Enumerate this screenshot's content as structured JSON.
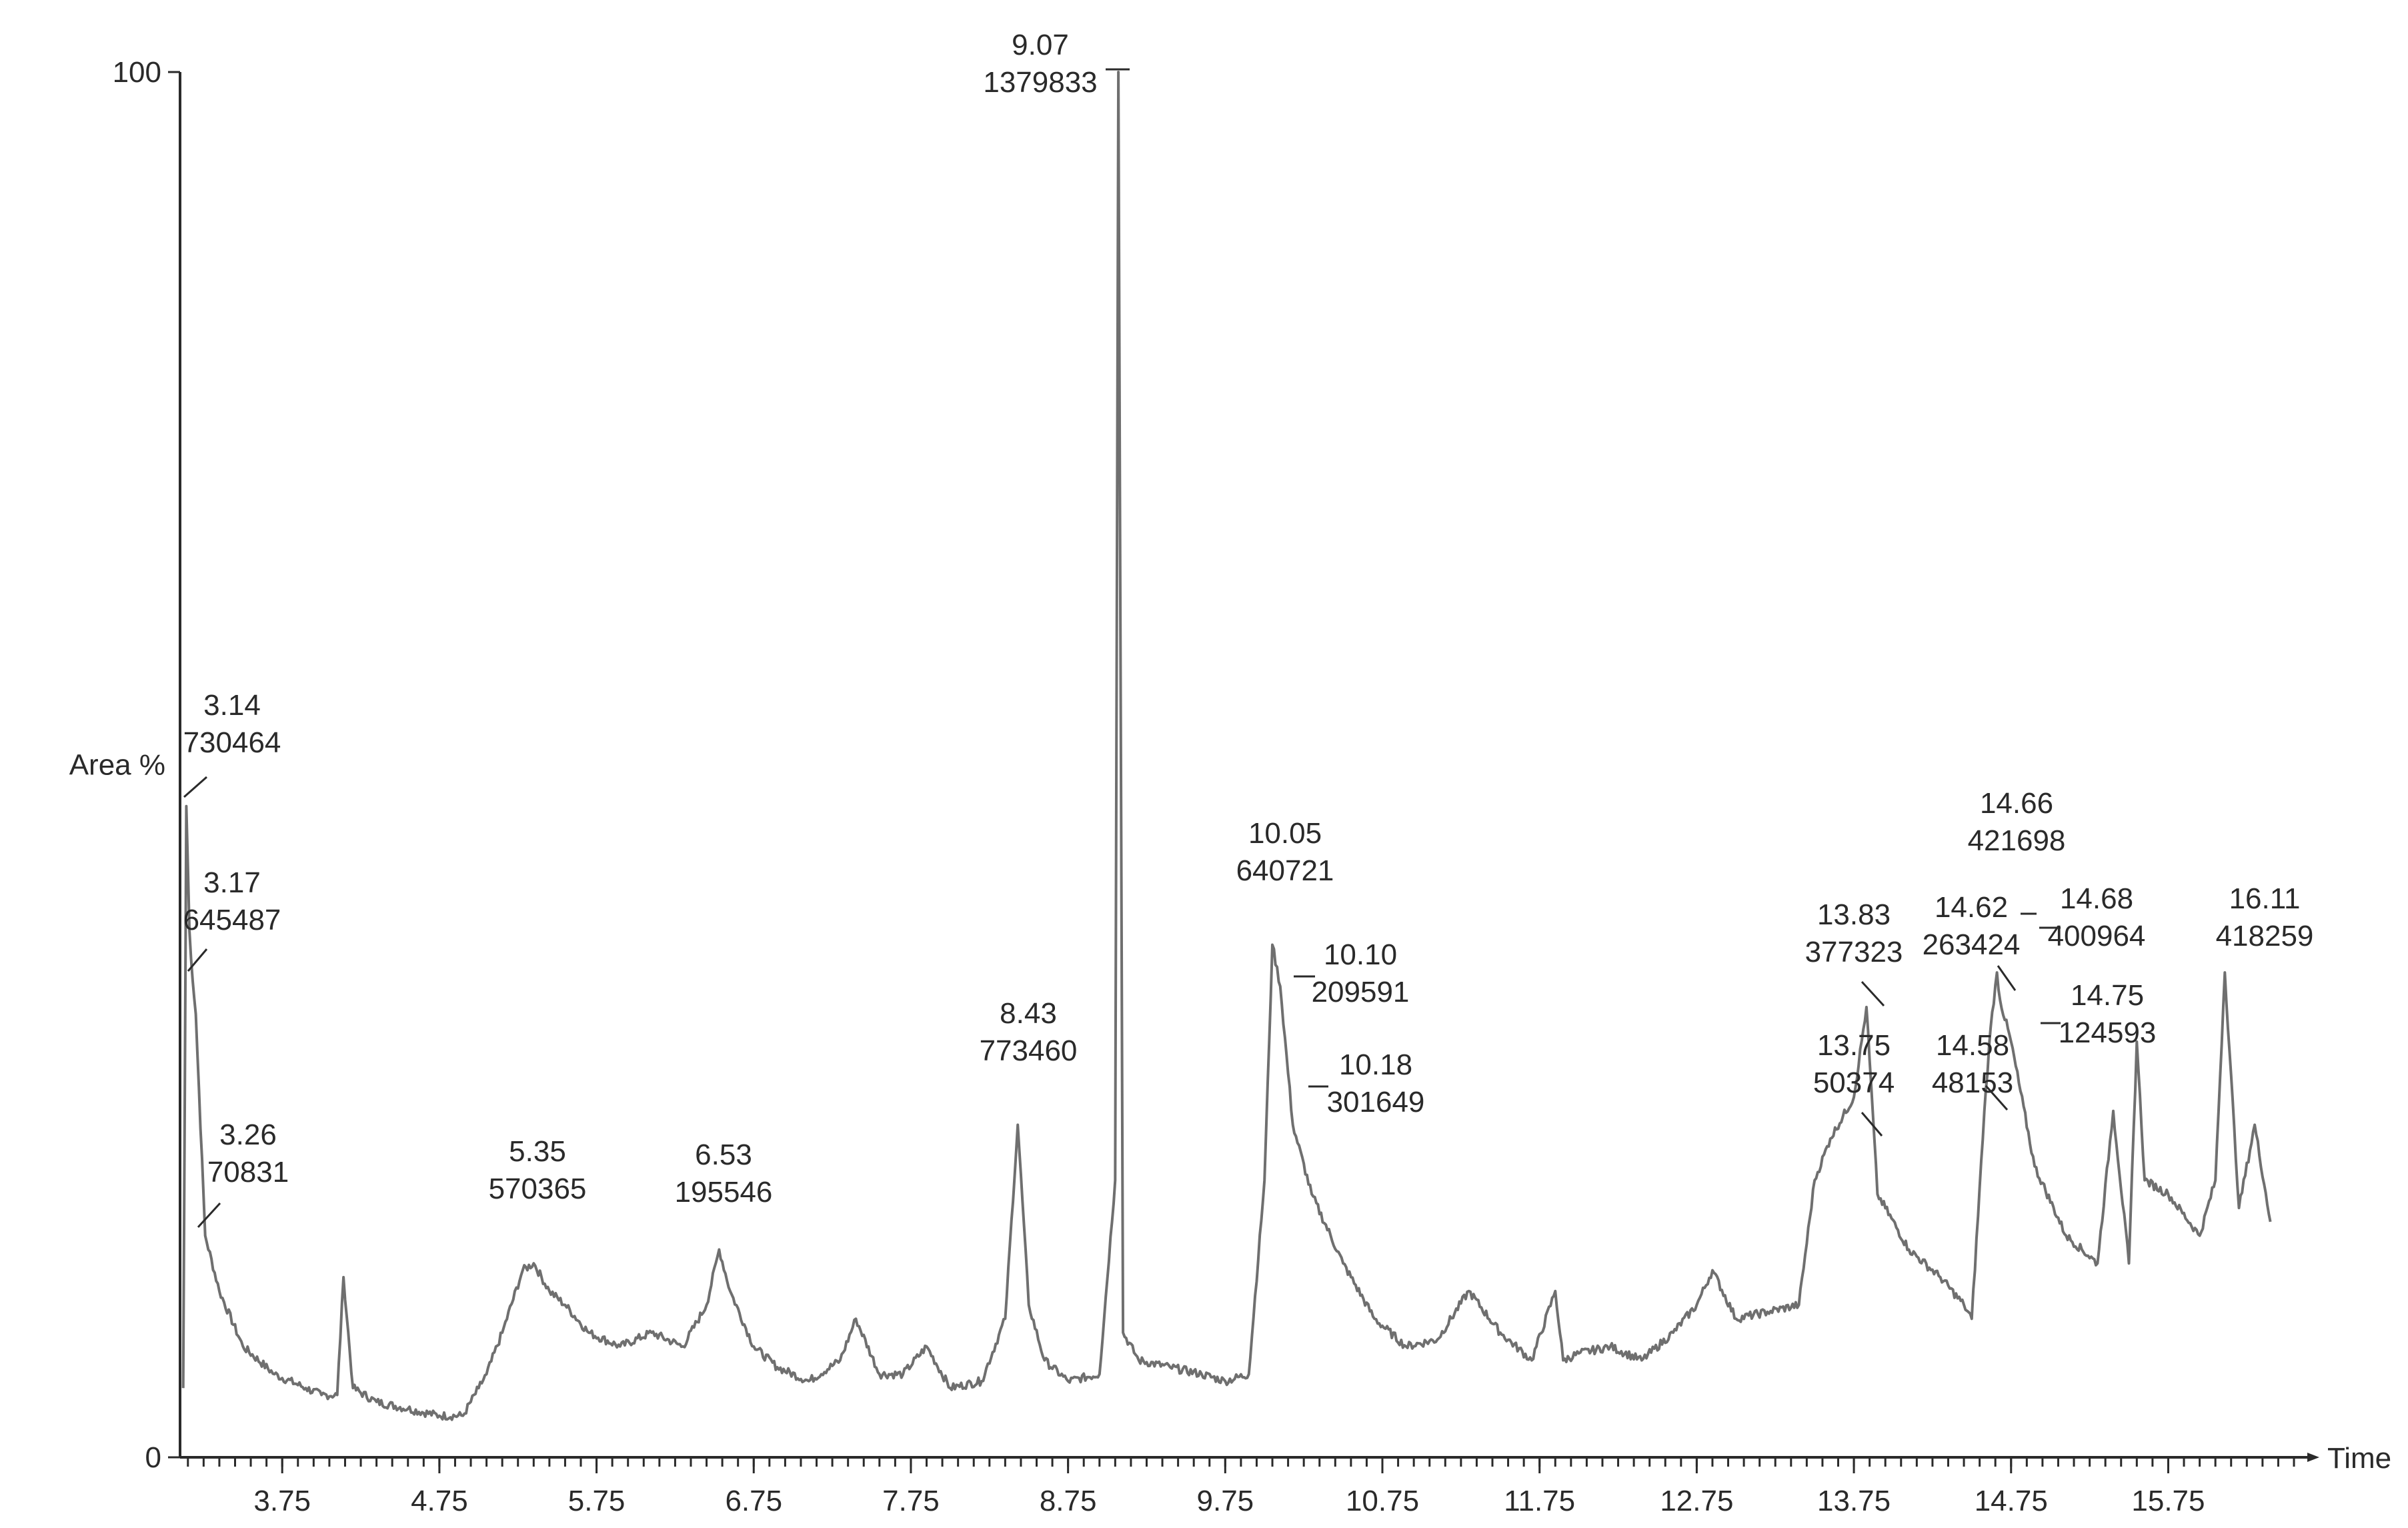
{
  "chart_data": {
    "type": "line",
    "title": "",
    "xlabel": "Time",
    "ylabel": "Area %",
    "xlim": [
      3.1,
      16.55
    ],
    "ylim": [
      0,
      100
    ],
    "grid": false,
    "x_ticks": [
      "3.75",
      "4.75",
      "5.75",
      "6.75",
      "7.75",
      "8.75",
      "9.75",
      "10.75",
      "11.75",
      "12.75",
      "13.75",
      "14.75",
      "15.75"
    ],
    "y_ticks": [
      "0",
      "100"
    ],
    "series": [
      {
        "x": [
          3.12,
          3.14,
          3.16,
          3.17,
          3.2,
          3.26,
          3.35,
          3.5,
          3.7,
          3.9,
          4.0,
          4.1,
          4.14,
          4.2,
          4.35,
          4.55,
          4.75,
          4.9,
          5.0,
          5.05,
          5.15,
          5.28,
          5.35,
          5.45,
          5.55,
          5.7,
          5.9,
          6.1,
          6.3,
          6.45,
          6.53,
          6.6,
          6.75,
          6.9,
          7.1,
          7.3,
          7.4,
          7.55,
          7.7,
          7.85,
          8.0,
          8.2,
          8.35,
          8.43,
          8.5,
          8.6,
          8.75,
          8.95,
          9.05,
          9.07,
          9.1,
          9.2,
          9.4,
          9.6,
          9.75,
          9.9,
          10.0,
          10.05,
          10.1,
          10.18,
          10.3,
          10.5,
          10.7,
          10.9,
          11.1,
          11.3,
          11.5,
          11.7,
          11.85,
          11.9,
          12.0,
          12.2,
          12.4,
          12.6,
          12.75,
          12.85,
          13.0,
          13.2,
          13.4,
          13.5,
          13.6,
          13.75,
          13.83,
          13.9,
          14.1,
          14.3,
          14.45,
          14.5,
          14.58,
          14.62,
          14.66,
          14.68,
          14.75,
          14.9,
          15.1,
          15.3,
          15.4,
          15.5,
          15.55,
          15.6,
          15.75,
          15.95,
          16.05,
          16.11,
          16.2,
          16.3,
          16.4
        ],
        "y": [
          5,
          47,
          38,
          36,
          32,
          16,
          12,
          8,
          6,
          5,
          4.5,
          4.5,
          13,
          5,
          4,
          3.5,
          3,
          3,
          5,
          6,
          9,
          13.5,
          14,
          12,
          11,
          9,
          8,
          9,
          8,
          11,
          15,
          12,
          8,
          6.5,
          5.5,
          7,
          10,
          6,
          6,
          8,
          5,
          5.5,
          10,
          24,
          11,
          7,
          5.5,
          6,
          20,
          100,
          9,
          7,
          6.5,
          6,
          5.5,
          6,
          20,
          37,
          34,
          24,
          19,
          14,
          10,
          8,
          8.5,
          12,
          9,
          7,
          12,
          7,
          7.5,
          8,
          7,
          9,
          11,
          13.5,
          10,
          10.5,
          11,
          20,
          23,
          26,
          32.5,
          19,
          15,
          13,
          11,
          10,
          25,
          31,
          35,
          33,
          30,
          21,
          16,
          14,
          25,
          14,
          30,
          20,
          19,
          16,
          20,
          35,
          18,
          24,
          17
        ]
      }
    ],
    "annotations": [
      {
        "rt": "3.14",
        "area": "730464"
      },
      {
        "rt": "3.17",
        "area": "645487"
      },
      {
        "rt": "3.26",
        "area": "70831"
      },
      {
        "rt": "5.35",
        "area": "570365"
      },
      {
        "rt": "6.53",
        "area": "195546"
      },
      {
        "rt": "8.43",
        "area": "773460"
      },
      {
        "rt": "9.07",
        "area": "1379833"
      },
      {
        "rt": "10.05",
        "area": "640721"
      },
      {
        "rt": "10.10",
        "area": "209591"
      },
      {
        "rt": "10.18",
        "area": "301649"
      },
      {
        "rt": "13.75",
        "area": "50374"
      },
      {
        "rt": "13.83",
        "area": "377323"
      },
      {
        "rt": "14.58",
        "area": "48153"
      },
      {
        "rt": "14.62",
        "area": "263424"
      },
      {
        "rt": "14.66",
        "area": "421698"
      },
      {
        "rt": "14.68",
        "area": "400964"
      },
      {
        "rt": "14.75",
        "area": "124593"
      },
      {
        "rt": "16.11",
        "area": "418259"
      }
    ]
  }
}
